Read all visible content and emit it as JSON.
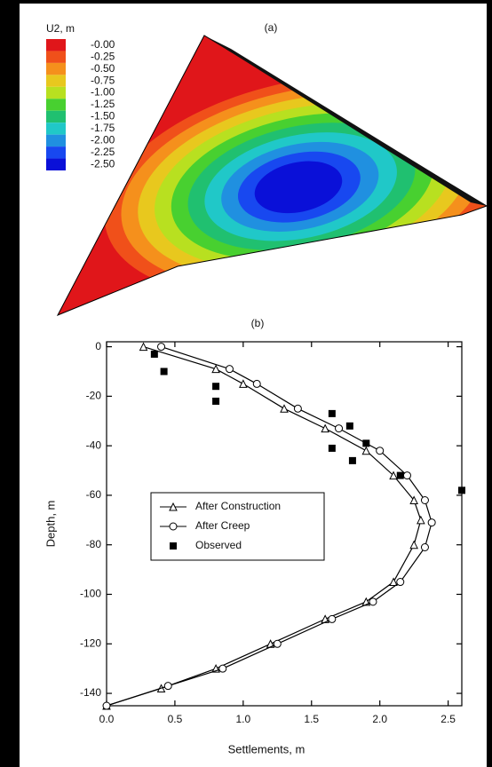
{
  "figure_a": {
    "label": "(a)",
    "legend_title": "U2, m",
    "legend_labels": [
      "-0.00",
      "-0.25",
      "-0.50",
      "-0.75",
      "-1.00",
      "-1.25",
      "-1.50",
      "-1.75",
      "-2.00",
      "-2.25",
      "-2.50"
    ],
    "colors": [
      "#e0161a",
      "#f0501a",
      "#f5901c",
      "#e8c81e",
      "#b8e020",
      "#48d030",
      "#20c070",
      "#20c8c8",
      "#2090e0",
      "#1848f0",
      "#0a10d8"
    ]
  },
  "chart_data": {
    "type": "line",
    "title": "(b)",
    "x_label": "Settlements, m",
    "y_label": "Depth, m",
    "xlim": [
      0,
      2.6
    ],
    "ylim": [
      -145,
      2
    ],
    "xticks": [
      {
        "value": 0,
        "label": "0.0"
      },
      0.5,
      {
        "value": 1,
        "label": "1.0"
      },
      1.5,
      {
        "value": 2,
        "label": "2.0"
      },
      2.5
    ],
    "yticks": [
      0,
      -20,
      -40,
      -60,
      -80,
      -100,
      -120,
      -140
    ],
    "legend": "middle-left",
    "series": [
      {
        "name": "After Construction",
        "color": "#000000",
        "marker": "triangle",
        "line": true,
        "x": [
          0.27,
          0.8,
          1.0,
          1.3,
          1.6,
          1.9,
          2.1,
          2.25,
          2.3,
          2.25,
          2.1,
          1.9,
          1.6,
          1.2,
          0.8,
          0.4,
          0.0
        ],
        "values": [
          0,
          -9,
          -15,
          -25,
          -33,
          -42,
          -52,
          -62,
          -70,
          -80,
          -95,
          -103,
          -110,
          -120,
          -130,
          -138,
          -145
        ]
      },
      {
        "name": "After Creep",
        "color": "#000000",
        "marker": "circle",
        "line": true,
        "x": [
          0.4,
          0.9,
          1.1,
          1.4,
          1.7,
          2.0,
          2.2,
          2.33,
          2.38,
          2.33,
          2.15,
          1.95,
          1.65,
          1.25,
          0.85,
          0.45,
          0.0
        ],
        "values": [
          0,
          -9,
          -15,
          -25,
          -33,
          -42,
          -52,
          -62,
          -71,
          -81,
          -95,
          -103,
          -110,
          -120,
          -130,
          -137,
          -145
        ]
      },
      {
        "name": "Observed",
        "color": "#000000",
        "marker": "square",
        "line": false,
        "x": [
          0.35,
          0.42,
          0.8,
          0.8,
          1.65,
          1.78,
          1.9,
          1.65,
          1.8,
          2.15,
          2.6
        ],
        "values": [
          -3,
          -10,
          -16,
          -22,
          -27,
          -32,
          -39,
          -41,
          -46,
          -52,
          -58
        ]
      }
    ]
  }
}
